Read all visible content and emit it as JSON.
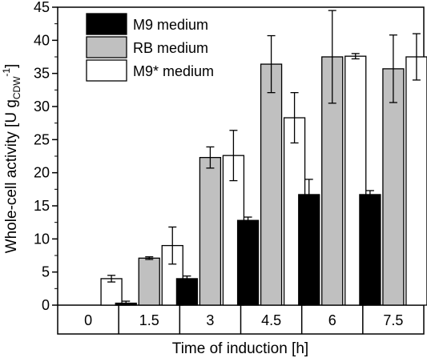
{
  "chart_data": {
    "type": "bar",
    "title": "",
    "xlabel": "Time of induction [h]",
    "ylabel": {
      "main": "Whole-cell activity [U g",
      "sub": "CDW",
      "sup": "-1",
      "close": "]"
    },
    "ylim": [
      0,
      45
    ],
    "yticks": [
      "0",
      "5",
      "10",
      "15",
      "20",
      "25",
      "30",
      "35",
      "40",
      "45"
    ],
    "categories": [
      "0",
      "1.5",
      "3",
      "4.5",
      "6",
      "7.5"
    ],
    "legend_position": "top-left",
    "series": [
      {
        "name": "M9 medium",
        "color": "#000000",
        "values": [
          0,
          0.3,
          4.0,
          12.8,
          16.7,
          16.7
        ],
        "errors": [
          0,
          0.3,
          0.4,
          0.5,
          2.3,
          0.6
        ]
      },
      {
        "name": "RB medium",
        "color": "#c0c0c0",
        "values": [
          0,
          7.1,
          22.3,
          36.4,
          37.5,
          35.7
        ],
        "errors": [
          0,
          0.2,
          1.6,
          4.3,
          7.0,
          5.1
        ]
      },
      {
        "name": "M9* medium",
        "color": "#ffffff",
        "values": [
          4.0,
          9.0,
          22.6,
          28.3,
          37.6,
          37.5
        ],
        "errors": [
          0.5,
          2.8,
          3.8,
          3.8,
          0.4,
          3.5
        ]
      }
    ]
  }
}
